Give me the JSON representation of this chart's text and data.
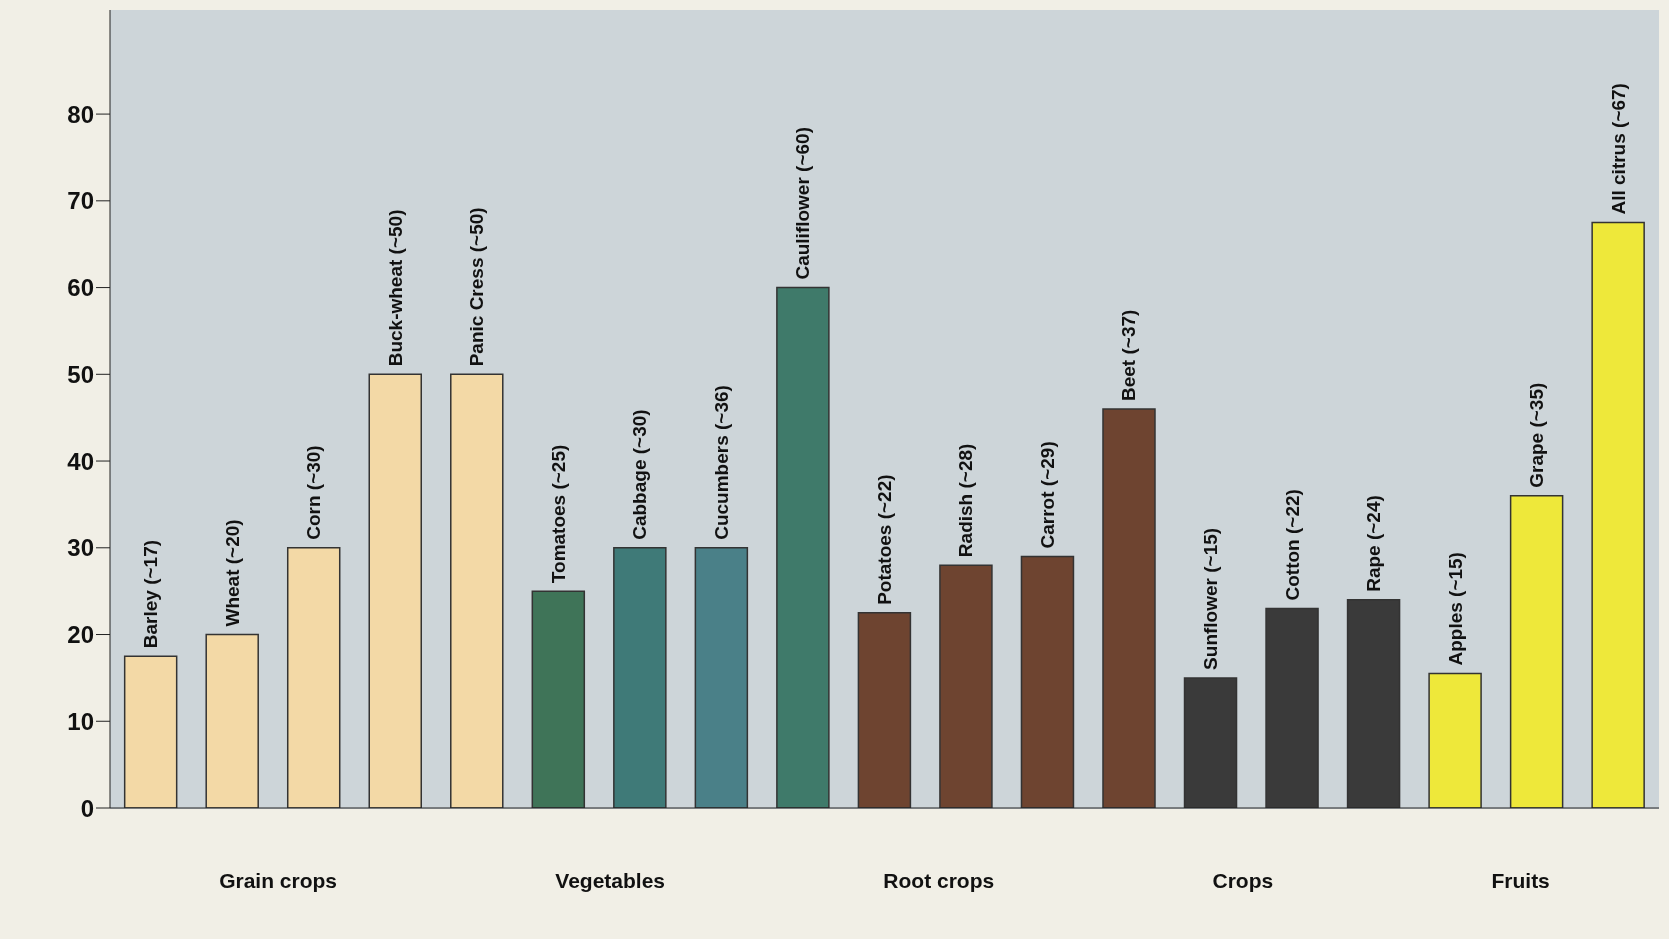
{
  "chart_data": {
    "type": "bar",
    "categories": [
      "Barley (~17)",
      "Wheat (~20)",
      "Corn (~30)",
      "Buck-wheat (~50)",
      "Panic Cress (~50)",
      "Tomatoes (~25)",
      "Cabbage (~30)",
      "Cucumbers (~36)",
      "Cauliflower (~60)",
      "Potatoes (~22)",
      "Radish (~28)",
      "Carrot (~29)",
      "Beet (~37)",
      "Sunflower (~15)",
      "Cotton (~22)",
      "Rape (~24)",
      "Apples (~15)",
      "Grape (~35)",
      "All citrus (~67)"
    ],
    "values": [
      17.5,
      20,
      30,
      50,
      50,
      25,
      30,
      30,
      60,
      22.5,
      28,
      29,
      46,
      15,
      23,
      24,
      15.5,
      36,
      67.5
    ],
    "colors": [
      "#f3d9a6",
      "#f3d9a6",
      "#f3d9a6",
      "#f3d9a6",
      "#f3d9a6",
      "#3f7458",
      "#3f7a78",
      "#4a8088",
      "#3f7a6a",
      "#6e4430",
      "#6e4430",
      "#6e4430",
      "#6e4430",
      "#3a3a3a",
      "#3a3a3a",
      "#3a3a3a",
      "#eee83a",
      "#eee83a",
      "#eee83a"
    ],
    "ylim": [
      0,
      92
    ],
    "yticks": [
      0,
      10,
      20,
      30,
      40,
      50,
      60,
      70,
      80
    ],
    "grid": false,
    "annotations": [
      "Grain crops",
      "Vegetables",
      "Root crops",
      "Crops",
      "Fruits"
    ]
  }
}
